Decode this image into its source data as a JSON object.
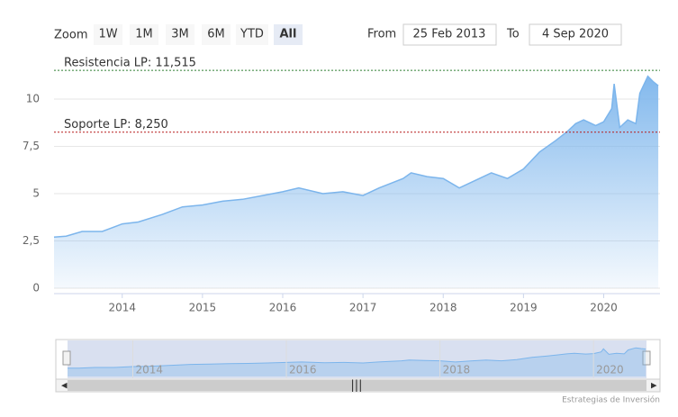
{
  "chart_data": {
    "type": "area",
    "range_selector": {
      "label": "Zoom",
      "buttons": [
        "1W",
        "1M",
        "3M",
        "6M",
        "YTD",
        "All"
      ],
      "selected": 5
    },
    "from_label": "From",
    "from": "25 Feb 2013",
    "to_label": "To",
    "to": "4 Sep 2020",
    "x": [
      2013.15,
      2013.3,
      2013.5,
      2013.75,
      2014.0,
      2014.2,
      2014.5,
      2014.75,
      2015.0,
      2015.25,
      2015.5,
      2015.75,
      2016.0,
      2016.2,
      2016.5,
      2016.75,
      2017.0,
      2017.2,
      2017.5,
      2017.6,
      2017.8,
      2018.0,
      2018.2,
      2018.4,
      2018.6,
      2018.8,
      2019.0,
      2019.2,
      2019.4,
      2019.55,
      2019.65,
      2019.75,
      2019.9,
      2020.0,
      2020.1,
      2020.13,
      2020.2,
      2020.3,
      2020.4,
      2020.45,
      2020.55,
      2020.62,
      2020.68
    ],
    "values": [
      2.7,
      2.75,
      3.0,
      3.0,
      3.4,
      3.5,
      3.9,
      4.3,
      4.4,
      4.6,
      4.7,
      4.9,
      5.1,
      5.3,
      5.0,
      5.1,
      4.9,
      5.3,
      5.8,
      6.1,
      5.9,
      5.8,
      5.3,
      5.7,
      6.1,
      5.8,
      6.3,
      7.2,
      7.8,
      8.3,
      8.7,
      8.9,
      8.6,
      8.8,
      9.5,
      10.8,
      8.5,
      8.9,
      8.7,
      10.3,
      11.2,
      10.9,
      10.7
    ],
    "color": "#7cb5ec",
    "xlim": [
      2013.15,
      2020.69
    ],
    "xticks": [
      2014,
      2015,
      2016,
      2017,
      2018,
      2019,
      2020
    ],
    "ylim": [
      0,
      12.14
    ],
    "yticks": [
      0,
      {
        "value": 2.5,
        "label": "2,5"
      },
      5,
      {
        "value": 7.5,
        "label": "7,5"
      },
      10
    ],
    "grid": true,
    "plot_lines": [
      {
        "value": 11.515,
        "label": "Resistencia LP: 11,515",
        "color": "#2e7d32"
      },
      {
        "value": 8.25,
        "label": "Soporte LP: 8,250",
        "color": "#b71c1c"
      }
    ],
    "navigator_xticks": [
      2014,
      2016,
      2018,
      2020
    ],
    "credits": "Estrategias de Inversión"
  }
}
